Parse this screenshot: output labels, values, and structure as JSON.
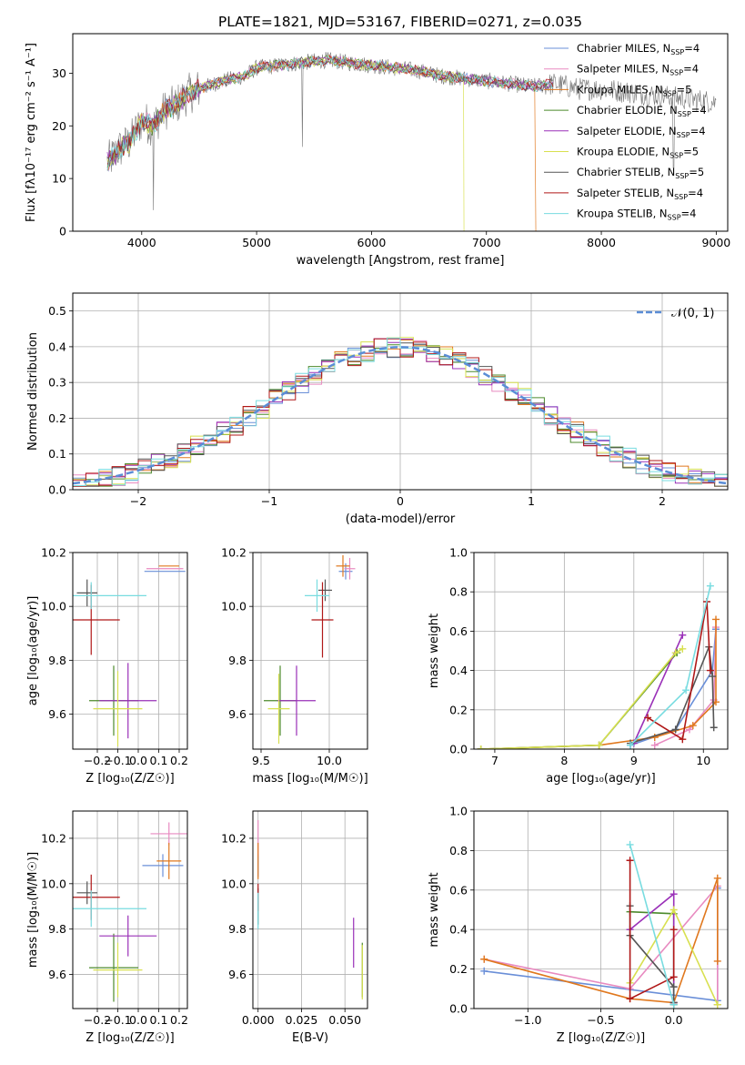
{
  "figure": {
    "title": "PLATE=1821, MJD=53167, FIBERID=0271, z=0.035"
  },
  "series_styles": [
    {
      "name": "Chabrier MILES",
      "color": "#6a8fd8"
    },
    {
      "name": "Salpeter MILES",
      "color": "#e88ac0"
    },
    {
      "name": "Kroupa MILES",
      "color": "#e0781e"
    },
    {
      "name": "Chabrier ELODIE",
      "color": "#4c8a2c"
    },
    {
      "name": "Salpeter ELODIE",
      "color": "#9a30b8"
    },
    {
      "name": "Kroupa ELODIE",
      "color": "#d8e050"
    },
    {
      "name": "Chabrier STELIB",
      "color": "#555555"
    },
    {
      "name": "Salpeter STELIB",
      "color": "#b01818"
    },
    {
      "name": "Kroupa STELIB",
      "color": "#78dce0"
    }
  ],
  "chart_data": [
    {
      "id": "spectrum",
      "type": "line",
      "xlabel": "wavelength [Angstrom, rest frame]",
      "ylabel": "Flux [fλ10⁻¹⁷ erg cm⁻² s⁻¹ A⁻¹]",
      "xlim": [
        3400,
        9100
      ],
      "ylim": [
        0,
        37.5
      ],
      "xticks": [
        4000,
        5000,
        6000,
        7000,
        8000,
        9000
      ],
      "yticks": [
        0,
        10,
        20,
        30
      ],
      "grid": false,
      "legend_position": "top-right",
      "legend": [
        {
          "label": "Chabrier MILES",
          "nssp": "4"
        },
        {
          "label": "Salpeter MILES",
          "nssp": "4"
        },
        {
          "label": "Kroupa MILES",
          "nssp": "5"
        },
        {
          "label": "Chabrier ELODIE",
          "nssp": "4"
        },
        {
          "label": "Salpeter ELODIE",
          "nssp": "4"
        },
        {
          "label": "Kroupa ELODIE",
          "nssp": "5"
        },
        {
          "label": "Chabrier STELIB",
          "nssp": "5"
        },
        {
          "label": "Salpeter STELIB",
          "nssp": "4"
        },
        {
          "label": "Kroupa STELIB",
          "nssp": "4"
        }
      ],
      "continuum": {
        "x": [
          3700,
          3800,
          3900,
          4000,
          4100,
          4200,
          4300,
          4400,
          4500,
          4700,
          4900,
          5000,
          5200,
          5400,
          5600,
          5800,
          6000,
          6200,
          6400,
          6600,
          6800,
          7000,
          7200,
          7400,
          7600,
          7800,
          8000,
          8200,
          8400,
          8600,
          8800,
          9000
        ],
        "y": [
          13,
          15.5,
          17,
          21,
          20,
          23,
          24,
          26,
          27,
          28.5,
          29.5,
          31,
          31.5,
          32,
          32.5,
          32,
          31.5,
          31,
          30.5,
          29.5,
          29,
          28.5,
          28,
          27.5,
          28,
          27,
          27,
          26.5,
          26,
          25.5,
          25,
          24.5
        ]
      }
    },
    {
      "id": "residuals",
      "type": "histogram",
      "xlabel": "(data-model)/error",
      "ylabel": "Normed distribution",
      "xlim": [
        -2.5,
        2.5
      ],
      "ylim": [
        0,
        0.55
      ],
      "xticks": [
        -2,
        -1,
        0,
        1,
        2
      ],
      "yticks": [
        0,
        0.1,
        0.2,
        0.3,
        0.4,
        0.5
      ],
      "grid": true,
      "legend_position": "top-right",
      "reference_curve": {
        "label": "𝒩(0, 1)",
        "mean": 0,
        "sigma": 1
      }
    },
    {
      "id": "age_vs_Z",
      "type": "errorbar",
      "xlabel": "Z [log₁₀(Z/Z☉)]",
      "ylabel": "age  [log₁₀(age/yr)]",
      "xlim": [
        -0.32,
        0.24
      ],
      "ylim": [
        9.47,
        10.2
      ],
      "xticks": [
        -0.2,
        -0.1,
        0.0,
        0.1,
        0.2
      ],
      "yticks": [
        9.6,
        9.8,
        10.0,
        10.2
      ],
      "grid": true,
      "points": [
        {
          "x": 0.13,
          "xerr": 0.1,
          "y": 10.13,
          "yerr": 0.0
        },
        {
          "x": 0.13,
          "xerr": 0.09,
          "y": 10.14,
          "yerr": 0.0
        },
        {
          "x": 0.15,
          "xerr": 0.05,
          "y": 10.15,
          "yerr": 0.0
        },
        {
          "x": -0.12,
          "xerr": 0.12,
          "y": 9.65,
          "yerr": 0.13
        },
        {
          "x": -0.05,
          "xerr": 0.14,
          "y": 9.65,
          "yerr": 0.14
        },
        {
          "x": -0.1,
          "xerr": 0.12,
          "y": 9.62,
          "yerr": 0.14
        },
        {
          "x": -0.25,
          "xerr": 0.05,
          "y": 10.05,
          "yerr": 0.05
        },
        {
          "x": -0.23,
          "xerr": 0.14,
          "y": 9.95,
          "yerr": 0.13
        },
        {
          "x": -0.23,
          "xerr": 0.27,
          "y": 10.04,
          "yerr": 0.05
        }
      ]
    },
    {
      "id": "age_vs_mass",
      "type": "errorbar",
      "xlabel": "mass [log₁₀(M/M☉)]",
      "ylabel": "",
      "xlim": [
        9.44,
        10.28
      ],
      "ylim": [
        9.47,
        10.2
      ],
      "xticks": [
        9.5,
        10.0
      ],
      "yticks": [
        9.6,
        9.8,
        10.0,
        10.2
      ],
      "grid": true,
      "points": [
        {
          "x": 10.12,
          "xerr": 0.05,
          "y": 10.13,
          "yerr": 0.03
        },
        {
          "x": 10.15,
          "xerr": 0.04,
          "y": 10.14,
          "yerr": 0.04
        },
        {
          "x": 10.1,
          "xerr": 0.05,
          "y": 10.15,
          "yerr": 0.04
        },
        {
          "x": 9.64,
          "xerr": 0.12,
          "y": 9.65,
          "yerr": 0.13
        },
        {
          "x": 9.76,
          "xerr": 0.14,
          "y": 9.65,
          "yerr": 0.13
        },
        {
          "x": 9.63,
          "xerr": 0.08,
          "y": 9.62,
          "yerr": 0.13
        },
        {
          "x": 9.97,
          "xerr": 0.05,
          "y": 10.06,
          "yerr": 0.04
        },
        {
          "x": 9.95,
          "xerr": 0.08,
          "y": 9.95,
          "yerr": 0.14
        },
        {
          "x": 9.91,
          "xerr": 0.09,
          "y": 10.04,
          "yerr": 0.06
        }
      ]
    },
    {
      "id": "weight_vs_age",
      "type": "line",
      "xlabel": "age  [log₁₀(age/yr)]",
      "ylabel": "mass weight",
      "xlim": [
        6.7,
        10.35
      ],
      "ylim": [
        0,
        1.0
      ],
      "xticks": [
        7,
        8,
        9,
        10
      ],
      "yticks": [
        0.0,
        0.2,
        0.4,
        0.6,
        0.8,
        1.0
      ],
      "grid": true,
      "series": [
        {
          "x": [
            8.95,
            9.6,
            10.13,
            10.18
          ],
          "y": [
            0.02,
            0.1,
            0.4,
            0.61
          ]
        },
        {
          "x": [
            9.3,
            9.8,
            10.15,
            10.18
          ],
          "y": [
            0.02,
            0.1,
            0.25,
            0.62
          ]
        },
        {
          "x": [
            6.8,
            8.5,
            9.3,
            9.85,
            10.18,
            10.18
          ],
          "y": [
            0.0,
            0.02,
            0.06,
            0.12,
            0.24,
            0.66
          ]
        },
        {
          "x": [
            6.8,
            8.5,
            9.62
          ],
          "y": [
            0.0,
            0.02,
            0.49
          ]
        },
        {
          "x": [
            9.0,
            9.7
          ],
          "y": [
            0.03,
            0.58
          ]
        },
        {
          "x": [
            6.8,
            8.5,
            9.6,
            9.7
          ],
          "y": [
            0.0,
            0.02,
            0.49,
            0.51
          ]
        },
        {
          "x": [
            8.95,
            9.6,
            10.08,
            10.13,
            10.15
          ],
          "y": [
            0.03,
            0.1,
            0.52,
            0.37,
            0.11
          ]
        },
        {
          "x": [
            9.2,
            9.7,
            10.05,
            10.1
          ],
          "y": [
            0.16,
            0.05,
            0.75,
            0.4
          ]
        },
        {
          "x": [
            8.95,
            9.75,
            10.1
          ],
          "y": [
            0.02,
            0.3,
            0.83
          ]
        }
      ]
    },
    {
      "id": "mass_vs_Z",
      "type": "errorbar",
      "xlabel": "Z [log₁₀(Z/Z☉)]",
      "ylabel": "mass [log₁₀(M/M☉)]",
      "xlim": [
        -0.32,
        0.24
      ],
      "ylim": [
        9.45,
        10.32
      ],
      "xticks": [
        -0.2,
        -0.1,
        0.0,
        0.1,
        0.2
      ],
      "yticks": [
        9.6,
        9.8,
        10.0,
        10.2
      ],
      "grid": true,
      "points": [
        {
          "x": 0.12,
          "xerr": 0.1,
          "y": 10.08,
          "yerr": 0.05
        },
        {
          "x": 0.15,
          "xerr": 0.09,
          "y": 10.22,
          "yerr": 0.05
        },
        {
          "x": 0.15,
          "xerr": 0.06,
          "y": 10.1,
          "yerr": 0.08
        },
        {
          "x": -0.12,
          "xerr": 0.12,
          "y": 9.63,
          "yerr": 0.15
        },
        {
          "x": -0.05,
          "xerr": 0.14,
          "y": 9.77,
          "yerr": 0.09
        },
        {
          "x": -0.1,
          "xerr": 0.12,
          "y": 9.62,
          "yerr": 0.12
        },
        {
          "x": -0.25,
          "xerr": 0.05,
          "y": 9.96,
          "yerr": 0.05
        },
        {
          "x": -0.23,
          "xerr": 0.14,
          "y": 9.94,
          "yerr": 0.1
        },
        {
          "x": -0.23,
          "xerr": 0.27,
          "y": 9.89,
          "yerr": 0.08
        }
      ]
    },
    {
      "id": "mass_vs_EBV",
      "type": "errorbar",
      "xlabel": "E(B-V)",
      "ylabel": "",
      "xlim": [
        -0.003,
        0.063
      ],
      "ylim": [
        9.45,
        10.32
      ],
      "xticks": [
        0.0,
        0.025,
        0.05
      ],
      "yticks": [
        9.6,
        9.8,
        10.0,
        10.2
      ],
      "grid": true,
      "points": [
        {
          "x": 0.0,
          "xerr": 0.0,
          "y": 10.08,
          "yerr": 0.05
        },
        {
          "x": 0.0,
          "xerr": 0.0,
          "y": 10.2,
          "yerr": 0.08
        },
        {
          "x": 0.0,
          "xerr": 0.0,
          "y": 10.1,
          "yerr": 0.08
        },
        {
          "x": 0.06,
          "xerr": 0.0,
          "y": 9.62,
          "yerr": 0.12
        },
        {
          "x": 0.055,
          "xerr": 0.0,
          "y": 9.74,
          "yerr": 0.11
        },
        {
          "x": 0.06,
          "xerr": 0.0,
          "y": 9.61,
          "yerr": 0.12
        },
        {
          "x": 0.0,
          "xerr": 0.0,
          "y": 9.9,
          "yerr": 0.08
        },
        {
          "x": 0.0,
          "xerr": 0.0,
          "y": 9.94,
          "yerr": 0.06
        },
        {
          "x": 0.0,
          "xerr": 0.0,
          "y": 9.88,
          "yerr": 0.08
        }
      ]
    },
    {
      "id": "weight_vs_Z",
      "type": "line",
      "xlabel": "Z [log₁₀(Z/Z☉)]",
      "ylabel": "mass weight",
      "xlim": [
        -1.37,
        0.37
      ],
      "ylim": [
        0,
        1.0
      ],
      "xticks": [
        -1.0,
        -0.5,
        0.0
      ],
      "yticks": [
        0.0,
        0.2,
        0.4,
        0.6,
        0.8,
        1.0
      ],
      "grid": true,
      "series": [
        {
          "x": [
            -1.3,
            0.3,
            0.3,
            0.3
          ],
          "y": [
            0.19,
            0.04,
            0.02,
            0.61
          ]
        },
        {
          "x": [
            -1.3,
            -0.3,
            0.3,
            0.3
          ],
          "y": [
            0.25,
            0.1,
            0.62,
            0.02
          ]
        },
        {
          "x": [
            -1.3,
            -0.3,
            0.0,
            0.3,
            0.3
          ],
          "y": [
            0.25,
            0.05,
            0.03,
            0.66,
            0.24
          ]
        },
        {
          "x": [
            -0.3,
            0.0,
            0.0
          ],
          "y": [
            0.49,
            0.48,
            0.02
          ]
        },
        {
          "x": [
            -0.3,
            0.0,
            0.0
          ],
          "y": [
            0.4,
            0.58,
            0.03
          ]
        },
        {
          "x": [
            -0.3,
            0.0,
            0.3
          ],
          "y": [
            0.13,
            0.5,
            0.02
          ]
        },
        {
          "x": [
            -0.3,
            -0.3,
            0.0,
            0.0
          ],
          "y": [
            0.52,
            0.37,
            0.11,
            0.03
          ]
        },
        {
          "x": [
            -0.3,
            -0.3,
            0.0,
            0.0
          ],
          "y": [
            0.75,
            0.05,
            0.16,
            0.4
          ]
        },
        {
          "x": [
            -0.3,
            0.0
          ],
          "y": [
            0.83,
            0.02
          ]
        }
      ]
    }
  ]
}
